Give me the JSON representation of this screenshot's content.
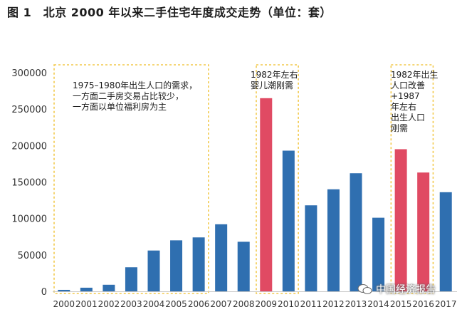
{
  "title": "图 1　北京 2000 年以来二手住宅年度成交走势（单位：套）",
  "watermark": "中国经济报告",
  "colors": {
    "blue": "#2f6fb0",
    "red": "#e04a63",
    "box": "#f2c94c",
    "axis": "#c8c8c8"
  },
  "chart_data": {
    "type": "bar",
    "title": "图 1　北京 2000 年以来二手住宅年度成交走势（单位：套）",
    "xlabel": "",
    "ylabel": "",
    "ylim": [
      0,
      300000
    ],
    "yticks": [
      "300000",
      "250000",
      "200000",
      "150000",
      "100000",
      "50000",
      "0"
    ],
    "categories": [
      "2000",
      "2001",
      "2002",
      "2003",
      "2004",
      "2005",
      "2006",
      "2007",
      "2008",
      "2009",
      "2010",
      "2011",
      "2012",
      "2013",
      "2014",
      "2015",
      "2016",
      "2017"
    ],
    "values": [
      2000,
      5000,
      9000,
      33000,
      56000,
      70000,
      74000,
      92000,
      68000,
      265000,
      193000,
      118000,
      140000,
      162000,
      101000,
      195000,
      163000,
      136000
    ],
    "highlight": [
      "2009",
      "2015",
      "2016"
    ],
    "annotations": [
      {
        "text": "1975–1980年出生人口的需求，\n一方面二手房交易占比较少，\n一方面以单位福利房为主",
        "range": [
          "2000",
          "2006"
        ]
      },
      {
        "text": "1982年左右\n婴儿潮刚需",
        "range": [
          "2009",
          "2010"
        ]
      },
      {
        "text": "1982年出生\n人口改善\n+1987\n年左右\n出生人口\n刚需",
        "range": [
          "2015",
          "2016"
        ]
      }
    ]
  }
}
